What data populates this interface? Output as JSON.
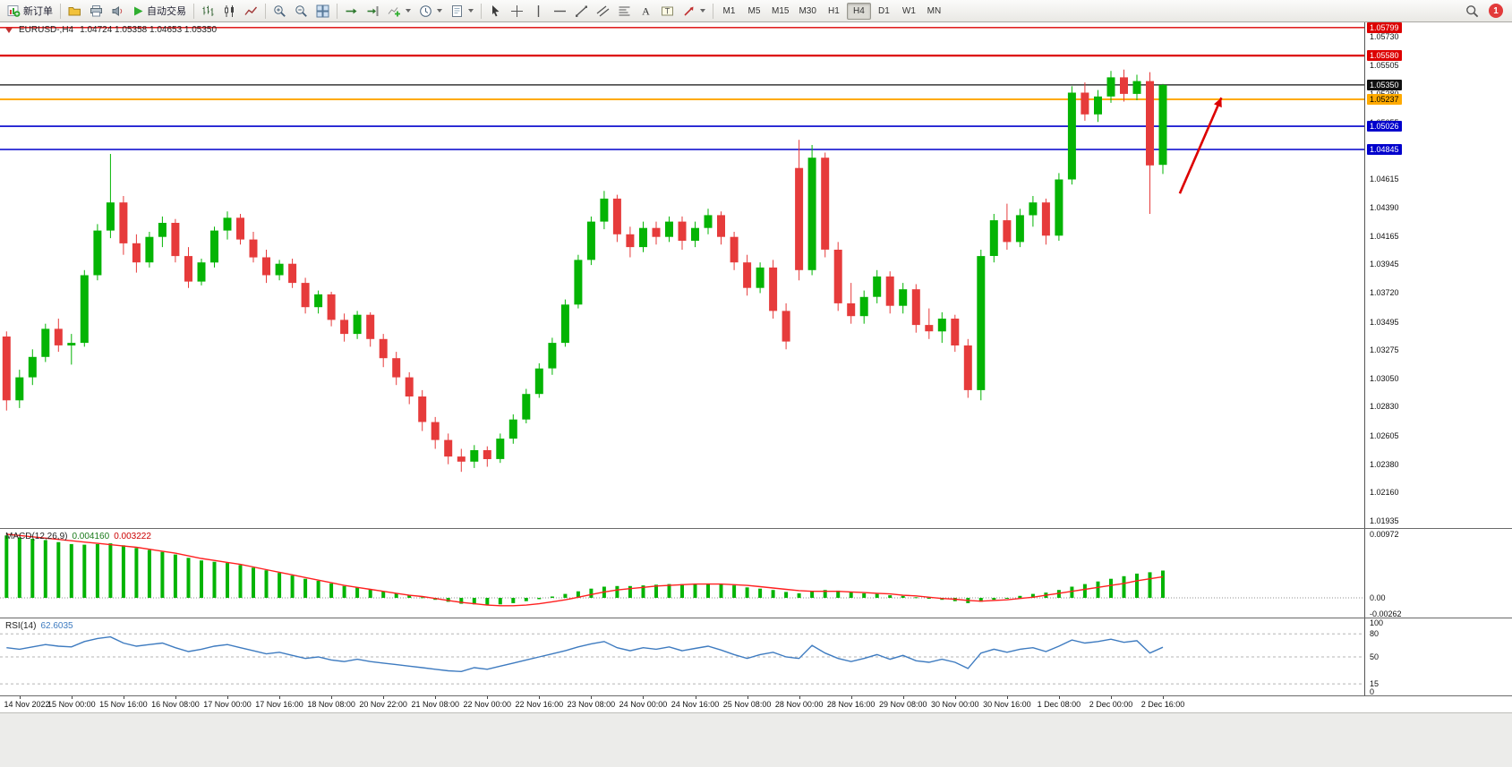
{
  "toolbar": {
    "new_order_label": "新订单",
    "autotrade_label": "自动交易",
    "timeframes": [
      "M1",
      "M5",
      "M15",
      "M30",
      "H1",
      "H4",
      "D1",
      "W1",
      "MN"
    ],
    "active_timeframe": "H4",
    "notification_count": "1",
    "icons": {
      "new_order": "chart-with-green-plus",
      "profiles": "yellow-folder",
      "print": "printer",
      "alerts": "speaker",
      "autotrade": "green-play-triangle",
      "chart_types": [
        "bar-chart",
        "candlestick-chart",
        "line-chart"
      ],
      "zoom": [
        "zoom-in-magnifier",
        "zoom-out-magnifier"
      ],
      "windows": "tile-windows-grid",
      "chart_tools": [
        "auto-scroll",
        "chart-shift",
        "indicators-plus",
        "periods-clock",
        "templates-page"
      ],
      "draw_tools": [
        "cursor",
        "crosshair",
        "vertical-line",
        "horizontal-line",
        "trendline",
        "equidistant-channel",
        "fibonacci",
        "text-A",
        "text-label-T",
        "arrows"
      ],
      "right": [
        "search-magnifier",
        "notification-red-circle"
      ]
    }
  },
  "chart_data": {
    "type": "candlestick",
    "symbol_period": "EURUSD-,H4",
    "ohlc_readout": "1.04724 1.05358 1.04653 1.05350",
    "bull_color": "#04b404",
    "bear_color": "#e63b3b",
    "right_shift_candles": 15,
    "x_label_start_index": 1,
    "x_label_step": 4,
    "y_axis": {
      "min": 1.0188,
      "max": 1.0584,
      "ticks": [
        "1.05730",
        "1.05505",
        "1.05280",
        "1.05055",
        "1.04830",
        "1.04615",
        "1.04390",
        "1.04165",
        "1.03945",
        "1.03720",
        "1.03495",
        "1.03275",
        "1.03050",
        "1.02830",
        "1.02605",
        "1.02380",
        "1.02160",
        "1.01935"
      ]
    },
    "hlines": [
      {
        "price": 1.05799,
        "label": "1.05799",
        "color": "#dd0000",
        "width": 1.4,
        "text_color": "#ffffff"
      },
      {
        "price": 1.0558,
        "label": "1.05580",
        "color": "#dd0000",
        "width": 2.2,
        "text_color": "#ffffff"
      },
      {
        "price": 1.0535,
        "label": "1.05350",
        "color": "#111111",
        "width": 1.2,
        "text_color": "#ffffff"
      },
      {
        "price": 1.05237,
        "label": "1.05237",
        "color": "#ffaa00",
        "width": 2.0,
        "text_color": "#000000"
      },
      {
        "price": 1.05026,
        "label": "1.05026",
        "color": "#0000cc",
        "width": 1.6,
        "text_color": "#ffffff"
      },
      {
        "price": 1.04845,
        "label": "1.04845",
        "color": "#0000cc",
        "width": 1.6,
        "text_color": "#ffffff"
      }
    ],
    "arrow": {
      "from_index": 90.3,
      "from_price": 1.045,
      "to_index": 93.5,
      "to_price": 1.0525,
      "color": "#dd0000"
    },
    "x_labels": [
      "14 Nov 2022",
      "15 Nov 00:00",
      "15 Nov 16:00",
      "16 Nov 08:00",
      "17 Nov 00:00",
      "17 Nov 16:00",
      "18 Nov 08:00",
      "20 Nov 22:00",
      "21 Nov 08:00",
      "22 Nov 00:00",
      "22 Nov 16:00",
      "23 Nov 08:00",
      "24 Nov 00:00",
      "24 Nov 16:00",
      "25 Nov 08:00",
      "28 Nov 00:00",
      "28 Nov 16:00",
      "29 Nov 08:00",
      "30 Nov 00:00",
      "30 Nov 16:00",
      "1 Dec 08:00",
      "2 Dec 00:00",
      "2 Dec 16:00"
    ],
    "candles": [
      [
        1.0338,
        1.0342,
        1.028,
        1.0288
      ],
      [
        1.0288,
        1.0312,
        1.0282,
        1.0306
      ],
      [
        1.0306,
        1.0328,
        1.03,
        1.0322
      ],
      [
        1.0322,
        1.0348,
        1.0318,
        1.0344
      ],
      [
        1.0344,
        1.0352,
        1.0326,
        1.0331
      ],
      [
        1.0331,
        1.034,
        1.0316,
        1.0333
      ],
      [
        1.0333,
        1.039,
        1.033,
        1.0386
      ],
      [
        1.0386,
        1.0426,
        1.0382,
        1.0421
      ],
      [
        1.0421,
        1.0481,
        1.0415,
        1.0443
      ],
      [
        1.0443,
        1.0448,
        1.0402,
        1.0411
      ],
      [
        1.0411,
        1.0418,
        1.0388,
        1.0396
      ],
      [
        1.0396,
        1.042,
        1.0392,
        1.0416
      ],
      [
        1.0416,
        1.0432,
        1.0408,
        1.0427
      ],
      [
        1.0427,
        1.043,
        1.0396,
        1.0401
      ],
      [
        1.0401,
        1.0408,
        1.0376,
        1.0381
      ],
      [
        1.0381,
        1.0399,
        1.0378,
        1.0396
      ],
      [
        1.0396,
        1.0424,
        1.0392,
        1.0421
      ],
      [
        1.0421,
        1.0436,
        1.0414,
        1.0431
      ],
      [
        1.0431,
        1.0434,
        1.041,
        1.0414
      ],
      [
        1.0414,
        1.042,
        1.0396,
        1.04
      ],
      [
        1.04,
        1.0406,
        1.038,
        1.0386
      ],
      [
        1.0386,
        1.0398,
        1.0382,
        1.0395
      ],
      [
        1.0395,
        1.0399,
        1.0376,
        1.038
      ],
      [
        1.038,
        1.0384,
        1.0356,
        1.0361
      ],
      [
        1.0361,
        1.0374,
        1.0356,
        1.0371
      ],
      [
        1.0371,
        1.0373,
        1.0346,
        1.0351
      ],
      [
        1.0351,
        1.0356,
        1.0334,
        1.034
      ],
      [
        1.034,
        1.0358,
        1.0336,
        1.0355
      ],
      [
        1.0355,
        1.0357,
        1.033,
        1.0336
      ],
      [
        1.0336,
        1.034,
        1.0314,
        1.0321
      ],
      [
        1.0321,
        1.0326,
        1.03,
        1.0306
      ],
      [
        1.0306,
        1.031,
        1.0285,
        1.0291
      ],
      [
        1.0291,
        1.0296,
        1.0264,
        1.0271
      ],
      [
        1.0271,
        1.0275,
        1.025,
        1.0257
      ],
      [
        1.0257,
        1.0262,
        1.0238,
        1.0244
      ],
      [
        1.0244,
        1.025,
        1.0232,
        1.024
      ],
      [
        1.024,
        1.0253,
        1.0235,
        1.0249
      ],
      [
        1.0249,
        1.0252,
        1.0236,
        1.0242
      ],
      [
        1.0242,
        1.0262,
        1.0239,
        1.0258
      ],
      [
        1.0258,
        1.0277,
        1.0254,
        1.0273
      ],
      [
        1.0273,
        1.0297,
        1.027,
        1.0293
      ],
      [
        1.0293,
        1.0317,
        1.029,
        1.0313
      ],
      [
        1.0313,
        1.0337,
        1.0308,
        1.0333
      ],
      [
        1.0333,
        1.0367,
        1.033,
        1.0363
      ],
      [
        1.0363,
        1.0402,
        1.036,
        1.0398
      ],
      [
        1.0398,
        1.0432,
        1.0394,
        1.0428
      ],
      [
        1.0428,
        1.0452,
        1.0422,
        1.0446
      ],
      [
        1.0446,
        1.0449,
        1.0412,
        1.0418
      ],
      [
        1.0418,
        1.0424,
        1.04,
        1.0408
      ],
      [
        1.0408,
        1.0428,
        1.0404,
        1.0423
      ],
      [
        1.0423,
        1.0428,
        1.041,
        1.0416
      ],
      [
        1.0416,
        1.0432,
        1.0412,
        1.0428
      ],
      [
        1.0428,
        1.0432,
        1.0406,
        1.0413
      ],
      [
        1.0413,
        1.0428,
        1.0408,
        1.0423
      ],
      [
        1.0423,
        1.0438,
        1.0418,
        1.0433
      ],
      [
        1.0433,
        1.0436,
        1.041,
        1.0416
      ],
      [
        1.0416,
        1.042,
        1.039,
        1.0396
      ],
      [
        1.0396,
        1.0402,
        1.037,
        1.0376
      ],
      [
        1.0376,
        1.0396,
        1.0372,
        1.0392
      ],
      [
        1.0392,
        1.0398,
        1.0352,
        1.0358
      ],
      [
        1.0358,
        1.0364,
        1.0328,
        1.0334
      ],
      [
        1.047,
        1.0492,
        1.0382,
        1.039
      ],
      [
        1.039,
        1.0488,
        1.0386,
        1.0478
      ],
      [
        1.0478,
        1.0482,
        1.04,
        1.0406
      ],
      [
        1.0406,
        1.0412,
        1.0358,
        1.0364
      ],
      [
        1.0364,
        1.038,
        1.0348,
        1.0354
      ],
      [
        1.0354,
        1.0374,
        1.0348,
        1.0369
      ],
      [
        1.0369,
        1.039,
        1.0364,
        1.0385
      ],
      [
        1.0385,
        1.0389,
        1.0356,
        1.0362
      ],
      [
        1.0362,
        1.038,
        1.0356,
        1.0375
      ],
      [
        1.0375,
        1.0379,
        1.0341,
        1.0347
      ],
      [
        1.0347,
        1.036,
        1.0336,
        1.0342
      ],
      [
        1.0342,
        1.0357,
        1.0333,
        1.0352
      ],
      [
        1.0352,
        1.0355,
        1.0326,
        1.0331
      ],
      [
        1.0331,
        1.0336,
        1.029,
        1.0296
      ],
      [
        1.0296,
        1.0406,
        1.0288,
        1.0401
      ],
      [
        1.0401,
        1.0434,
        1.0396,
        1.0429
      ],
      [
        1.0429,
        1.0442,
        1.0406,
        1.0412
      ],
      [
        1.0412,
        1.0438,
        1.0408,
        1.0433
      ],
      [
        1.0433,
        1.0448,
        1.0424,
        1.0443
      ],
      [
        1.0443,
        1.0446,
        1.041,
        1.0417
      ],
      [
        1.0417,
        1.0466,
        1.0413,
        1.0461
      ],
      [
        1.0461,
        1.0534,
        1.0457,
        1.0529
      ],
      [
        1.0529,
        1.0537,
        1.0507,
        1.0512
      ],
      [
        1.0512,
        1.0531,
        1.0506,
        1.0526
      ],
      [
        1.0526,
        1.0546,
        1.0521,
        1.0541
      ],
      [
        1.0541,
        1.0547,
        1.0522,
        1.0528
      ],
      [
        1.0528,
        1.0543,
        1.0523,
        1.0538
      ],
      [
        1.0538,
        1.0545,
        1.0434,
        1.0472
      ],
      [
        1.04724,
        1.05358,
        1.04653,
        1.0535
      ]
    ],
    "macd": {
      "label": "MACD(12,26,9)",
      "value_main": "0.004160",
      "value_signal": "0.003222",
      "axis": [
        "0.00972",
        "0.00",
        "-0.00262"
      ],
      "ymin": -0.003,
      "ymax": 0.0105,
      "hist_color": "#04b404",
      "signal_color": "#ff2020",
      "hist": [
        0.0095,
        0.0092,
        0.009,
        0.0088,
        0.0085,
        0.0082,
        0.0081,
        0.0082,
        0.0083,
        0.008,
        0.0076,
        0.0073,
        0.007,
        0.0066,
        0.0061,
        0.0057,
        0.0055,
        0.0053,
        0.005,
        0.0046,
        0.0042,
        0.0038,
        0.0034,
        0.0029,
        0.0026,
        0.0022,
        0.0018,
        0.0016,
        0.0013,
        0.001,
        0.0007,
        0.0004,
        0.0001,
        -0.0003,
        -0.0006,
        -0.0009,
        -0.001,
        -0.0011,
        -0.001,
        -0.0008,
        -0.0005,
        -0.0002,
        0.0002,
        0.0006,
        0.001,
        0.0014,
        0.0017,
        0.0018,
        0.0018,
        0.0019,
        0.002,
        0.0021,
        0.0021,
        0.0021,
        0.0022,
        0.0021,
        0.0019,
        0.0016,
        0.0014,
        0.0012,
        0.0009,
        0.0007,
        0.001,
        0.0012,
        0.0011,
        0.0009,
        0.0007,
        0.0006,
        0.0004,
        0.0003,
        0.0001,
        -0.0001,
        -0.0003,
        -0.0005,
        -0.0008,
        -0.0006,
        -0.0003,
        0.0,
        0.0003,
        0.0006,
        0.0008,
        0.0012,
        0.0017,
        0.0021,
        0.0025,
        0.0029,
        0.0033,
        0.0037,
        0.0039,
        0.00416
      ],
      "signal": [
        0.0097,
        0.0095,
        0.0093,
        0.0091,
        0.0089,
        0.0087,
        0.0085,
        0.0083,
        0.0081,
        0.0079,
        0.0077,
        0.0074,
        0.0071,
        0.0068,
        0.0064,
        0.006,
        0.0057,
        0.0054,
        0.0051,
        0.0047,
        0.0043,
        0.0039,
        0.0035,
        0.0031,
        0.0027,
        0.0023,
        0.0019,
        0.0016,
        0.0013,
        0.001,
        0.0007,
        0.0004,
        0.0002,
        -0.0001,
        -0.0004,
        -0.0007,
        -0.0009,
        -0.0011,
        -0.0012,
        -0.0012,
        -0.0011,
        -0.0009,
        -0.0006,
        -0.0003,
        0.0001,
        0.0005,
        0.0009,
        0.0012,
        0.0014,
        0.0016,
        0.0018,
        0.0019,
        0.002,
        0.0021,
        0.0021,
        0.0021,
        0.002,
        0.0019,
        0.0017,
        0.0015,
        0.0013,
        0.0011,
        0.001,
        0.001,
        0.001,
        0.0009,
        0.0008,
        0.0007,
        0.0006,
        0.0004,
        0.0003,
        0.0001,
        -0.0001,
        -0.0002,
        -0.0004,
        -0.0005,
        -0.0004,
        -0.0003,
        -0.0001,
        0.0001,
        0.0004,
        0.0007,
        0.001,
        0.0013,
        0.0016,
        0.0019,
        0.0022,
        0.0026,
        0.0029,
        0.003222
      ]
    },
    "rsi": {
      "label": "RSI(14)",
      "value": "62.6035",
      "color": "#3e7bc0",
      "levels": [
        80,
        50,
        15
      ],
      "axis": [
        "100",
        "80",
        "50",
        "15",
        "0"
      ],
      "series": [
        62,
        60,
        63,
        66,
        64,
        63,
        70,
        74,
        76,
        68,
        64,
        66,
        68,
        62,
        57,
        60,
        64,
        66,
        62,
        58,
        54,
        56,
        52,
        48,
        50,
        46,
        44,
        47,
        44,
        42,
        40,
        38,
        36,
        34,
        32,
        31,
        36,
        34,
        38,
        42,
        46,
        50,
        54,
        58,
        63,
        67,
        70,
        62,
        58,
        62,
        60,
        63,
        58,
        61,
        64,
        59,
        53,
        48,
        53,
        56,
        50,
        48,
        65,
        55,
        48,
        44,
        48,
        53,
        47,
        52,
        45,
        43,
        47,
        43,
        35,
        55,
        60,
        56,
        60,
        62,
        57,
        64,
        72,
        68,
        70,
        73,
        69,
        71,
        55,
        62.6
      ]
    }
  }
}
